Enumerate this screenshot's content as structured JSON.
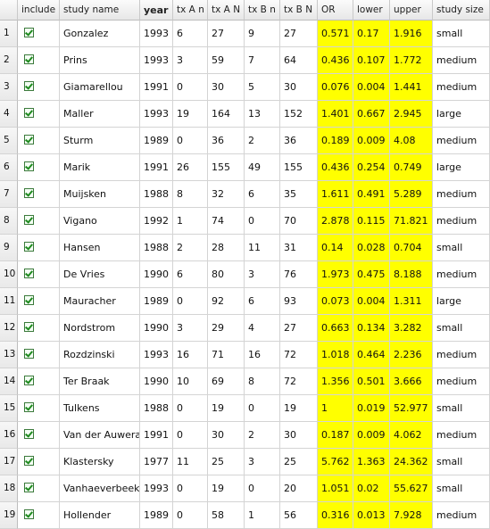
{
  "columns": [
    "",
    "include",
    "study name",
    "year",
    "tx A n",
    "tx A N",
    "tx B n",
    "tx B N",
    "OR",
    "lower",
    "upper",
    "study size"
  ],
  "highlight_color": "#ffff00",
  "rows": [
    {
      "num": "1",
      "include": true,
      "name": "Gonzalez",
      "year": "1993",
      "txAn": "6",
      "txAN": "27",
      "txBn": "9",
      "txBN": "27",
      "or": "0.571",
      "lower": "0.17",
      "upper": "1.916",
      "size": "small"
    },
    {
      "num": "2",
      "include": true,
      "name": "Prins",
      "year": "1993",
      "txAn": "3",
      "txAN": "59",
      "txBn": "7",
      "txBN": "64",
      "or": "0.436",
      "lower": "0.107",
      "upper": "1.772",
      "size": "medium"
    },
    {
      "num": "3",
      "include": true,
      "name": "Giamarellou",
      "year": "1991",
      "txAn": "0",
      "txAN": "30",
      "txBn": "5",
      "txBN": "30",
      "or": "0.076",
      "lower": "0.004",
      "upper": "1.441",
      "size": "medium"
    },
    {
      "num": "4",
      "include": true,
      "name": "Maller",
      "year": "1993",
      "txAn": "19",
      "txAN": "164",
      "txBn": "13",
      "txBN": "152",
      "or": "1.401",
      "lower": "0.667",
      "upper": "2.945",
      "size": "large"
    },
    {
      "num": "5",
      "include": true,
      "name": "Sturm",
      "year": "1989",
      "txAn": "0",
      "txAN": "36",
      "txBn": "2",
      "txBN": "36",
      "or": "0.189",
      "lower": "0.009",
      "upper": "4.08",
      "size": "medium"
    },
    {
      "num": "6",
      "include": true,
      "name": "Marik",
      "year": "1991",
      "txAn": "26",
      "txAN": "155",
      "txBn": "49",
      "txBN": "155",
      "or": "0.436",
      "lower": "0.254",
      "upper": "0.749",
      "size": "large"
    },
    {
      "num": "7",
      "include": true,
      "name": "Muijsken",
      "year": "1988",
      "txAn": "8",
      "txAN": "32",
      "txBn": "6",
      "txBN": "35",
      "or": "1.611",
      "lower": "0.491",
      "upper": "5.289",
      "size": "medium"
    },
    {
      "num": "8",
      "include": true,
      "name": "Vigano",
      "year": "1992",
      "txAn": "1",
      "txAN": "74",
      "txBn": "0",
      "txBN": "70",
      "or": "2.878",
      "lower": "0.115",
      "upper": "71.821",
      "size": "medium"
    },
    {
      "num": "9",
      "include": true,
      "name": "Hansen",
      "year": "1988",
      "txAn": "2",
      "txAN": "28",
      "txBn": "11",
      "txBN": "31",
      "or": "0.14",
      "lower": "0.028",
      "upper": "0.704",
      "size": "small"
    },
    {
      "num": "10",
      "include": true,
      "name": "De Vries",
      "year": "1990",
      "txAn": "6",
      "txAN": "80",
      "txBn": "3",
      "txBN": "76",
      "or": "1.973",
      "lower": "0.475",
      "upper": "8.188",
      "size": "medium"
    },
    {
      "num": "11",
      "include": true,
      "name": "Mauracher",
      "year": "1989",
      "txAn": "0",
      "txAN": "92",
      "txBn": "6",
      "txBN": "93",
      "or": "0.073",
      "lower": "0.004",
      "upper": "1.311",
      "size": "large"
    },
    {
      "num": "12",
      "include": true,
      "name": "Nordstrom",
      "year": "1990",
      "txAn": "3",
      "txAN": "29",
      "txBn": "4",
      "txBN": "27",
      "or": "0.663",
      "lower": "0.134",
      "upper": "3.282",
      "size": "small"
    },
    {
      "num": "13",
      "include": true,
      "name": "Rozdzinski",
      "year": "1993",
      "txAn": "16",
      "txAN": "71",
      "txBn": "16",
      "txBN": "72",
      "or": "1.018",
      "lower": "0.464",
      "upper": "2.236",
      "size": "medium"
    },
    {
      "num": "14",
      "include": true,
      "name": "Ter Braak",
      "year": "1990",
      "txAn": "10",
      "txAN": "69",
      "txBn": "8",
      "txBN": "72",
      "or": "1.356",
      "lower": "0.501",
      "upper": "3.666",
      "size": "medium"
    },
    {
      "num": "15",
      "include": true,
      "name": "Tulkens",
      "year": "1988",
      "txAn": "0",
      "txAN": "19",
      "txBn": "0",
      "txBN": "19",
      "or": "1",
      "lower": "0.019",
      "upper": "52.977",
      "size": "small"
    },
    {
      "num": "16",
      "include": true,
      "name": "Van der Auwera",
      "year": "1991",
      "txAn": "0",
      "txAN": "30",
      "txBn": "2",
      "txBN": "30",
      "or": "0.187",
      "lower": "0.009",
      "upper": "4.062",
      "size": "medium"
    },
    {
      "num": "17",
      "include": true,
      "name": "Klastersky",
      "year": "1977",
      "txAn": "11",
      "txAN": "25",
      "txBn": "3",
      "txBN": "25",
      "or": "5.762",
      "lower": "1.363",
      "upper": "24.362",
      "size": "small"
    },
    {
      "num": "18",
      "include": true,
      "name": "Vanhaeverbeek",
      "year": "1993",
      "txAn": "0",
      "txAN": "19",
      "txBn": "0",
      "txBN": "20",
      "or": "1.051",
      "lower": "0.02",
      "upper": "55.627",
      "size": "small"
    },
    {
      "num": "19",
      "include": true,
      "name": "Hollender",
      "year": "1989",
      "txAn": "0",
      "txAN": "58",
      "txBn": "1",
      "txBN": "56",
      "or": "0.316",
      "lower": "0.013",
      "upper": "7.928",
      "size": "medium"
    }
  ]
}
